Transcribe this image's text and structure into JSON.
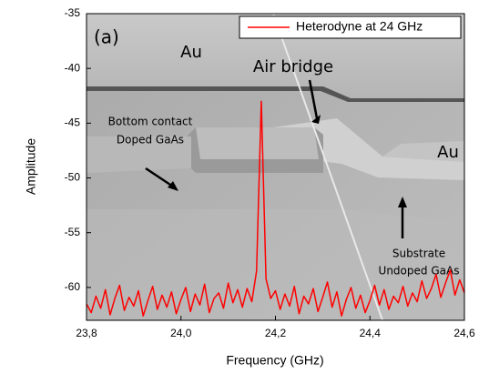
{
  "chart_data": {
    "type": "line",
    "xlabel": "Frequency (GHz)",
    "ylabel": "Amplitude",
    "xlim": [
      23.8,
      24.6
    ],
    "ylim": [
      -63,
      -35
    ],
    "xticks": [
      {
        "value": 23.8,
        "label": "23,8"
      },
      {
        "value": 24.0,
        "label": "24,0"
      },
      {
        "value": 24.2,
        "label": "24,2"
      },
      {
        "value": 24.4,
        "label": "24,4"
      },
      {
        "value": 24.6,
        "label": "24,6"
      }
    ],
    "yticks": [
      -35,
      -40,
      -45,
      -50,
      -55,
      -60
    ],
    "legend": "upper right",
    "x": [
      23.8,
      23.81,
      23.82,
      23.83,
      23.84,
      23.85,
      23.86,
      23.87,
      23.88,
      23.89,
      23.9,
      23.91,
      23.92,
      23.93,
      23.94,
      23.95,
      23.96,
      23.97,
      23.98,
      23.99,
      24.0,
      24.01,
      24.02,
      24.03,
      24.04,
      24.05,
      24.06,
      24.07,
      24.08,
      24.09,
      24.1,
      24.11,
      24.12,
      24.13,
      24.14,
      24.15,
      24.16,
      24.17,
      24.18,
      24.19,
      24.2,
      24.21,
      24.22,
      24.23,
      24.24,
      24.25,
      24.26,
      24.27,
      24.28,
      24.29,
      24.3,
      24.31,
      24.32,
      24.33,
      24.34,
      24.35,
      24.36,
      24.37,
      24.38,
      24.39,
      24.4,
      24.41,
      24.42,
      24.43,
      24.44,
      24.45,
      24.46,
      24.47,
      24.48,
      24.49,
      24.5,
      24.51,
      24.52,
      24.53,
      24.54,
      24.55,
      24.56,
      24.57,
      24.58,
      24.59,
      24.6
    ],
    "series": [
      {
        "name": "Heterodyne at 24 GHz",
        "color": "#ff0000",
        "values": [
          -61.5,
          -62.3,
          -60.8,
          -61.9,
          -60.2,
          -62.5,
          -61.0,
          -59.8,
          -62.1,
          -60.9,
          -61.7,
          -60.3,
          -62.6,
          -61.2,
          -59.9,
          -62.0,
          -60.7,
          -61.8,
          -60.4,
          -62.4,
          -61.1,
          -60.0,
          -62.2,
          -60.6,
          -61.6,
          -59.7,
          -62.3,
          -61.0,
          -60.5,
          -61.9,
          -59.6,
          -61.4,
          -60.2,
          -61.8,
          -60.1,
          -61.3,
          -58.5,
          -43,
          -59.2,
          -61.0,
          -60.3,
          -62.0,
          -60.6,
          -61.7,
          -59.9,
          -62.4,
          -60.8,
          -61.5,
          -60.1,
          -62.2,
          -60.9,
          -59.5,
          -61.8,
          -60.4,
          -62.6,
          -61.1,
          -60.0,
          -61.9,
          -60.7,
          -62.3,
          -61.2,
          -59.8,
          -61.6,
          -60.2,
          -62.0,
          -60.8,
          -61.4,
          -59.9,
          -61.7,
          -60.5,
          -61.3,
          -59.4,
          -61.0,
          -60.1,
          -58.8,
          -60.9,
          -59.6,
          -58.4,
          -60.7,
          -59.3,
          -60.5
        ]
      }
    ],
    "annotations": [
      "(a)",
      "Au",
      "Air bridge",
      "Bottom contact",
      "Doped GaAs",
      "Au",
      "Substrate",
      "Undoped GaAs"
    ]
  }
}
